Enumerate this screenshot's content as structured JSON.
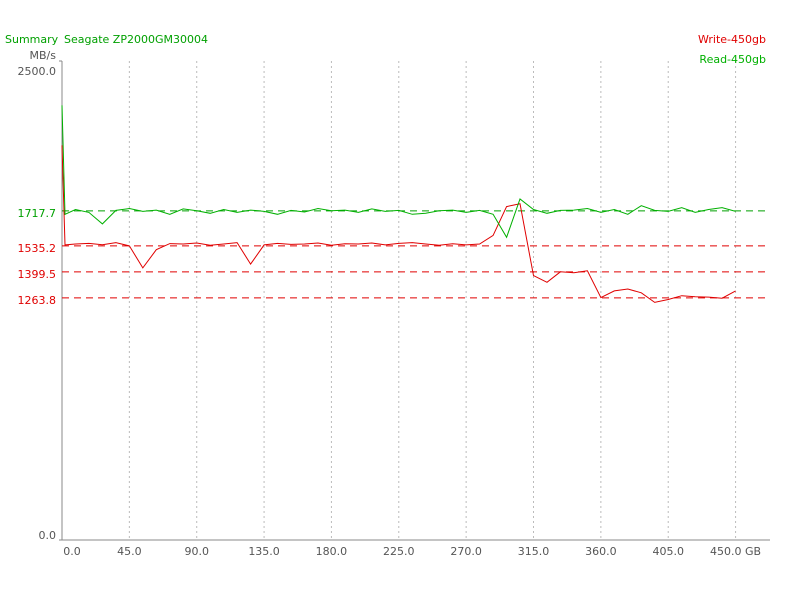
{
  "chart_data": {
    "type": "line",
    "title": "Summary",
    "subtitle": "Seagate ZP2000GM30004",
    "y_label": "MB/s",
    "title_color": "#00a000",
    "x": [
      0,
      2,
      9,
      18,
      27,
      36,
      45,
      54,
      63,
      72,
      81,
      90,
      99,
      108,
      117,
      126,
      135,
      144,
      153,
      162,
      171,
      180,
      189,
      198,
      207,
      216,
      225,
      234,
      243,
      252,
      261,
      270,
      279,
      288,
      297,
      306,
      315,
      324,
      333,
      342,
      351,
      360,
      369,
      378,
      387,
      396,
      405,
      414,
      423,
      432,
      441,
      450
    ],
    "series": [
      {
        "name": "Write-450gb",
        "color": "#e00000",
        "values": [
          2060,
          1540,
          1545,
          1548,
          1541,
          1552,
          1535,
          1420,
          1515,
          1547,
          1545,
          1550,
          1538,
          1545,
          1552,
          1440,
          1540,
          1548,
          1543,
          1545,
          1550,
          1538,
          1546,
          1545,
          1550,
          1540,
          1548,
          1552,
          1545,
          1538,
          1546,
          1540,
          1545,
          1590,
          1740,
          1755,
          1380,
          1345,
          1400,
          1395,
          1405,
          1265,
          1300,
          1310,
          1290,
          1240,
          1255,
          1275,
          1270,
          1268,
          1262,
          1300
        ]
      },
      {
        "name": "Read-450gb",
        "color": "#00b000",
        "values": [
          2269,
          1700,
          1725,
          1710,
          1650,
          1720,
          1730,
          1715,
          1722,
          1700,
          1728,
          1718,
          1705,
          1725,
          1710,
          1722,
          1715,
          1700,
          1720,
          1712,
          1730,
          1718,
          1722,
          1710,
          1728,
          1715,
          1720,
          1700,
          1705,
          1718,
          1722,
          1710,
          1720,
          1700,
          1580,
          1780,
          1725,
          1705,
          1720,
          1722,
          1730,
          1710,
          1725,
          1700,
          1745,
          1720,
          1715,
          1735,
          1710,
          1725,
          1735,
          1715
        ]
      }
    ],
    "reference_lines": [
      {
        "value": 1717.7,
        "color": "#00a000"
      },
      {
        "value": 1535.2,
        "color": "#e00000"
      },
      {
        "value": 1399.5,
        "color": "#e00000"
      },
      {
        "value": 1263.8,
        "color": "#e00000"
      }
    ],
    "xlim": [
      0,
      473
    ],
    "ylim": [
      0,
      2500
    ],
    "xticks": [
      {
        "value": 0,
        "label": "0.0"
      },
      {
        "value": 45,
        "label": "45.0"
      },
      {
        "value": 90,
        "label": "90.0"
      },
      {
        "value": 135,
        "label": "135.0"
      },
      {
        "value": 180,
        "label": "180.0"
      },
      {
        "value": 225,
        "label": "225.0"
      },
      {
        "value": 270,
        "label": "270.0"
      },
      {
        "value": 315,
        "label": "315.0"
      },
      {
        "value": 360,
        "label": "360.0"
      },
      {
        "value": 405,
        "label": "405.0"
      },
      {
        "value": 450,
        "label": "450.0 GB"
      }
    ],
    "yticks": [
      {
        "value": 0,
        "label": "0.0"
      },
      {
        "value": 2500,
        "label": "2500.0"
      }
    ],
    "grid": true
  }
}
